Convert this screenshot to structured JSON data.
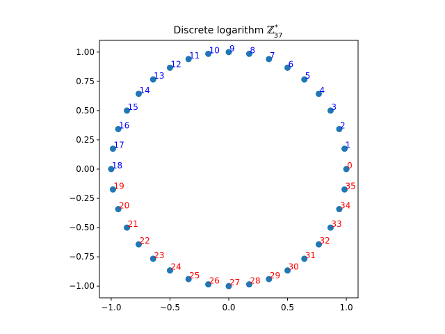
{
  "chart_data": {
    "type": "scatter",
    "title_prefix": "Discrete logarithm ",
    "title_symbol": "ℤ",
    "title_sub": "37",
    "title_sup": "*",
    "xlabel": "",
    "ylabel": "",
    "xlim": [
      -1.1,
      1.1
    ],
    "ylim": [
      -1.1,
      1.1
    ],
    "xticks": [
      -1.0,
      -0.5,
      0.0,
      0.5,
      1.0
    ],
    "xtick_labels": [
      "−1.0",
      "−0.5",
      "0.0",
      "0.5",
      "1.0"
    ],
    "yticks": [
      1.0,
      0.75,
      0.5,
      0.25,
      0.0,
      -0.25,
      -0.5,
      -0.75,
      -1.0
    ],
    "ytick_labels": [
      "1.00",
      "0.75",
      "0.50",
      "0.25",
      "0.00",
      "−0.25",
      "−0.50",
      "−0.75",
      "−1.00"
    ],
    "grid": false,
    "point_color": "#1f77b4",
    "label_color_upper": "#0000ff",
    "label_color_lower": "#ff0000",
    "points": [
      {
        "label": "0",
        "x": 1.0,
        "y": 0.0,
        "color": "#ff0000"
      },
      {
        "label": "1",
        "x": 0.985,
        "y": 0.174,
        "color": "#0000ff"
      },
      {
        "label": "2",
        "x": 0.94,
        "y": 0.342,
        "color": "#0000ff"
      },
      {
        "label": "3",
        "x": 0.866,
        "y": 0.5,
        "color": "#0000ff"
      },
      {
        "label": "4",
        "x": 0.766,
        "y": 0.643,
        "color": "#0000ff"
      },
      {
        "label": "5",
        "x": 0.643,
        "y": 0.766,
        "color": "#0000ff"
      },
      {
        "label": "6",
        "x": 0.5,
        "y": 0.866,
        "color": "#0000ff"
      },
      {
        "label": "7",
        "x": 0.342,
        "y": 0.94,
        "color": "#0000ff"
      },
      {
        "label": "8",
        "x": 0.174,
        "y": 0.985,
        "color": "#0000ff"
      },
      {
        "label": "9",
        "x": 0.0,
        "y": 1.0,
        "color": "#0000ff"
      },
      {
        "label": "10",
        "x": -0.174,
        "y": 0.985,
        "color": "#0000ff"
      },
      {
        "label": "11",
        "x": -0.342,
        "y": 0.94,
        "color": "#0000ff"
      },
      {
        "label": "12",
        "x": -0.5,
        "y": 0.866,
        "color": "#0000ff"
      },
      {
        "label": "13",
        "x": -0.643,
        "y": 0.766,
        "color": "#0000ff"
      },
      {
        "label": "14",
        "x": -0.766,
        "y": 0.643,
        "color": "#0000ff"
      },
      {
        "label": "15",
        "x": -0.866,
        "y": 0.5,
        "color": "#0000ff"
      },
      {
        "label": "16",
        "x": -0.94,
        "y": 0.342,
        "color": "#0000ff"
      },
      {
        "label": "17",
        "x": -0.985,
        "y": 0.174,
        "color": "#0000ff"
      },
      {
        "label": "18",
        "x": -1.0,
        "y": 0.0,
        "color": "#0000ff"
      },
      {
        "label": "19",
        "x": -0.985,
        "y": -0.174,
        "color": "#ff0000"
      },
      {
        "label": "20",
        "x": -0.94,
        "y": -0.342,
        "color": "#ff0000"
      },
      {
        "label": "21",
        "x": -0.866,
        "y": -0.5,
        "color": "#ff0000"
      },
      {
        "label": "22",
        "x": -0.766,
        "y": -0.643,
        "color": "#ff0000"
      },
      {
        "label": "23",
        "x": -0.643,
        "y": -0.766,
        "color": "#ff0000"
      },
      {
        "label": "24",
        "x": -0.5,
        "y": -0.866,
        "color": "#ff0000"
      },
      {
        "label": "25",
        "x": -0.342,
        "y": -0.94,
        "color": "#ff0000"
      },
      {
        "label": "26",
        "x": -0.174,
        "y": -0.985,
        "color": "#ff0000"
      },
      {
        "label": "27",
        "x": 0.0,
        "y": -1.0,
        "color": "#ff0000"
      },
      {
        "label": "28",
        "x": 0.174,
        "y": -0.985,
        "color": "#ff0000"
      },
      {
        "label": "29",
        "x": 0.342,
        "y": -0.94,
        "color": "#ff0000"
      },
      {
        "label": "30",
        "x": 0.5,
        "y": -0.866,
        "color": "#ff0000"
      },
      {
        "label": "31",
        "x": 0.643,
        "y": -0.766,
        "color": "#ff0000"
      },
      {
        "label": "32",
        "x": 0.766,
        "y": -0.643,
        "color": "#ff0000"
      },
      {
        "label": "33",
        "x": 0.866,
        "y": -0.5,
        "color": "#ff0000"
      },
      {
        "label": "34",
        "x": 0.94,
        "y": -0.342,
        "color": "#ff0000"
      },
      {
        "label": "35",
        "x": 0.985,
        "y": -0.174,
        "color": "#ff0000"
      }
    ]
  }
}
